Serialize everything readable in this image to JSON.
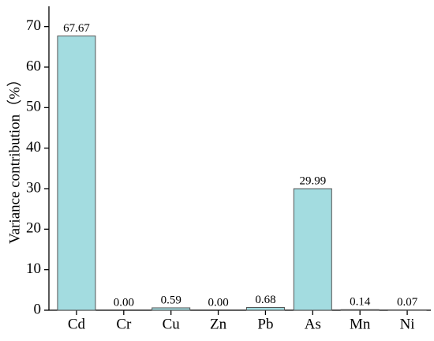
{
  "chart_data": {
    "type": "bar",
    "y_label": "Variance contribution（%）",
    "categories": [
      "Cd",
      "Cr",
      "Cu",
      "Zn",
      "Pb",
      "As",
      "Mn",
      "Ni"
    ],
    "values": [
      67.67,
      0,
      0.59,
      0,
      0.68,
      29.99,
      0.14,
      0.07
    ],
    "value_labels": [
      "67.67",
      "0.00",
      "0.59",
      "0.00",
      "0.68",
      "29.99",
      "0.14",
      "0.07"
    ],
    "color": "#a3dce0",
    "ylim": [
      0,
      75
    ],
    "yticks": [
      0,
      10,
      20,
      30,
      40,
      50,
      60,
      70
    ],
    "grid": false
  }
}
